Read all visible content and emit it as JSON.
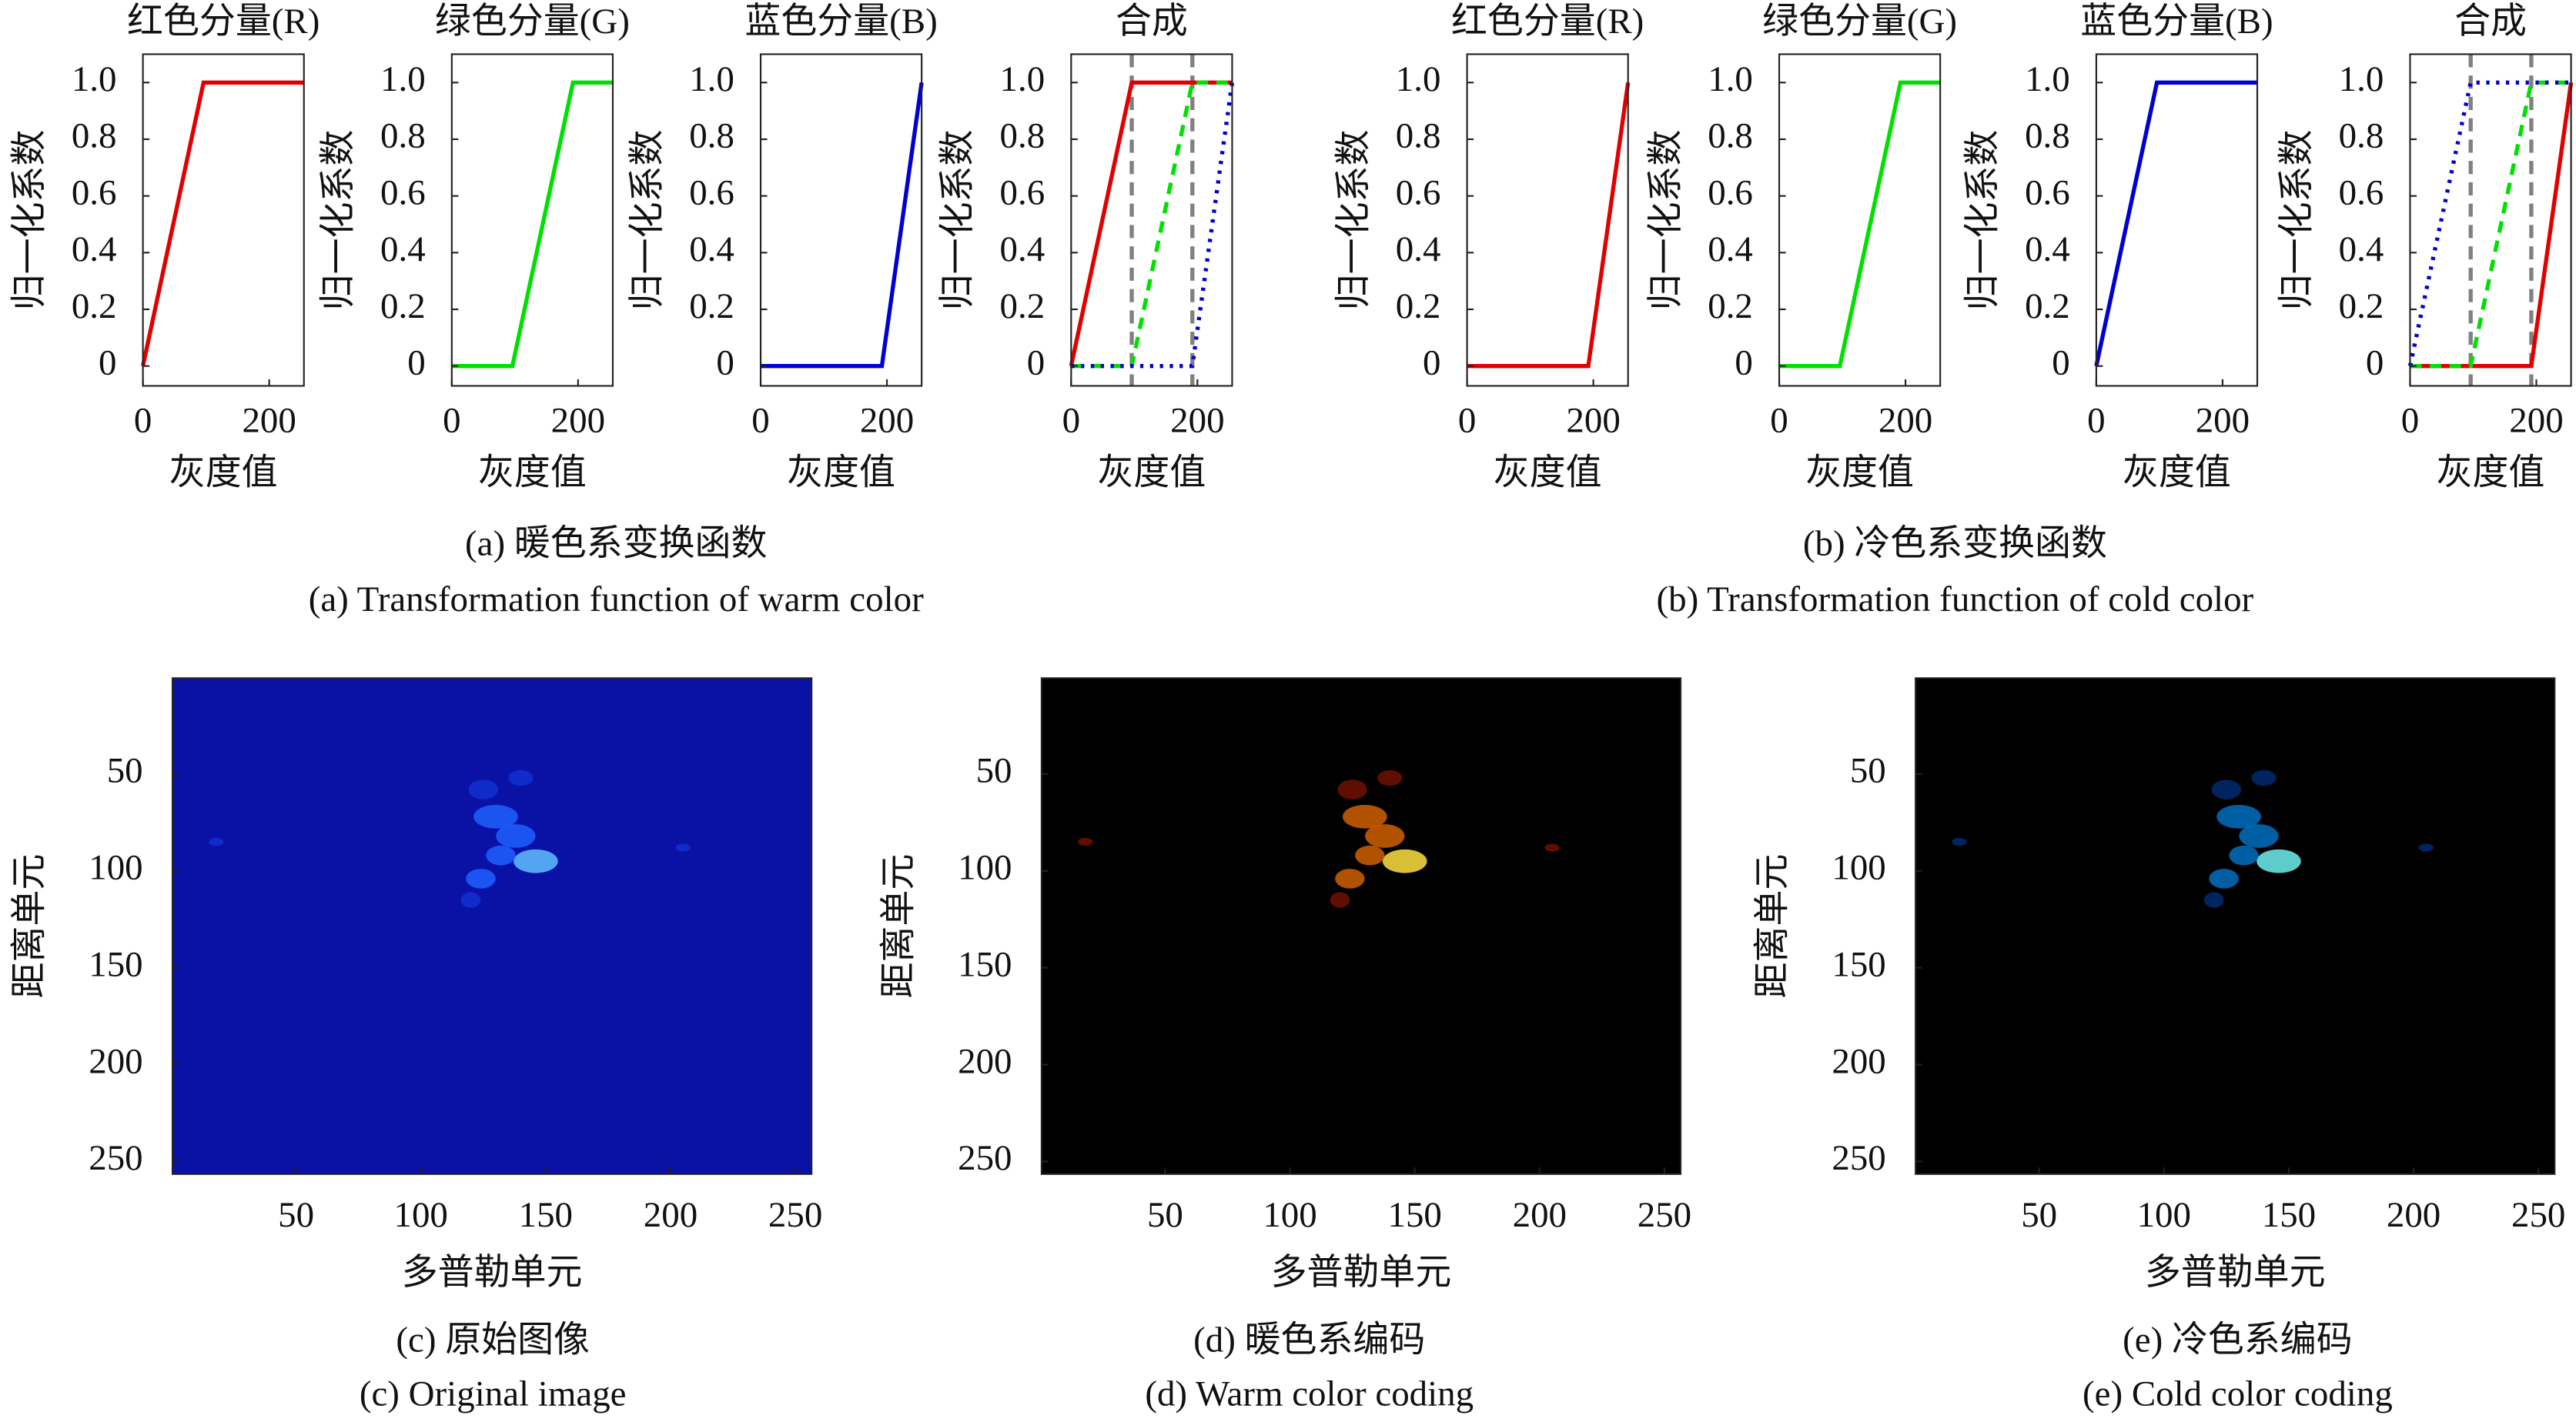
{
  "chart_data": [
    {
      "type": "line",
      "title": "红色分量(R)",
      "xlabel": "灰度值",
      "ylabel": "归一化系数",
      "x": [
        0,
        96,
        192,
        255
      ],
      "xlim": [
        0,
        255
      ],
      "ylim": [
        -0.07,
        1.1
      ],
      "xticks": [
        0,
        200
      ],
      "yticks": [
        0,
        0.2,
        0.4,
        0.6,
        0.8,
        {
          "value": 1,
          "label": "1.0"
        }
      ],
      "series": [
        {
          "color": "#e00000",
          "dash": "solid",
          "values": [
            0,
            1,
            1,
            1
          ]
        }
      ]
    },
    {
      "type": "line",
      "title": "绿色分量(G)",
      "xlabel": "灰度值",
      "ylabel": "归一化系数",
      "x": [
        0,
        96,
        192,
        255
      ],
      "xlim": [
        0,
        255
      ],
      "ylim": [
        -0.07,
        1.1
      ],
      "xticks": [
        0,
        200
      ],
      "yticks": [
        0,
        0.2,
        0.4,
        0.6,
        0.8,
        {
          "value": 1,
          "label": "1.0"
        }
      ],
      "series": [
        {
          "color": "#00e000",
          "dash": "solid",
          "values": [
            0,
            0,
            1,
            1
          ]
        }
      ]
    },
    {
      "type": "line",
      "title": "蓝色分量(B)",
      "xlabel": "灰度值",
      "ylabel": "归一化系数",
      "x": [
        0,
        96,
        192,
        255
      ],
      "xlim": [
        0,
        255
      ],
      "ylim": [
        -0.07,
        1.1
      ],
      "xticks": [
        0,
        200
      ],
      "yticks": [
        0,
        0.2,
        0.4,
        0.6,
        0.8,
        {
          "value": 1,
          "label": "1.0"
        }
      ],
      "series": [
        {
          "color": "#0000d0",
          "dash": "solid",
          "values": [
            0,
            0,
            0,
            1
          ]
        }
      ]
    },
    {
      "type": "line",
      "title": "合成",
      "xlabel": "灰度值",
      "ylabel": "归一化系数",
      "x": [
        0,
        96,
        192,
        255
      ],
      "xlim": [
        0,
        255
      ],
      "ylim": [
        -0.07,
        1.1
      ],
      "xticks": [
        0,
        200
      ],
      "yticks": [
        0,
        0.2,
        0.4,
        0.6,
        0.8,
        {
          "value": 1,
          "label": "1.0"
        }
      ],
      "vlines": [
        96,
        192
      ],
      "vline_color": "#808080",
      "series": [
        {
          "color": "#e00000",
          "dash": "solid",
          "values": [
            0,
            1,
            1,
            1
          ]
        },
        {
          "color": "#00e000",
          "dash": "dashed",
          "values": [
            0,
            0,
            1,
            1
          ]
        },
        {
          "color": "#0000d0",
          "dash": "dotted",
          "values": [
            0,
            0,
            0,
            1
          ]
        }
      ]
    },
    {
      "type": "line",
      "title": "红色分量(R)",
      "xlabel": "灰度值",
      "ylabel": "归一化系数",
      "x": [
        0,
        96,
        192,
        255
      ],
      "xlim": [
        0,
        255
      ],
      "ylim": [
        -0.07,
        1.1
      ],
      "xticks": [
        0,
        200
      ],
      "yticks": [
        0,
        0.2,
        0.4,
        0.6,
        0.8,
        {
          "value": 1,
          "label": "1.0"
        }
      ],
      "series": [
        {
          "color": "#e00000",
          "dash": "solid",
          "values": [
            0,
            0,
            0,
            1
          ]
        }
      ]
    },
    {
      "type": "line",
      "title": "绿色分量(G)",
      "xlabel": "灰度值",
      "ylabel": "归一化系数",
      "x": [
        0,
        96,
        192,
        255
      ],
      "xlim": [
        0,
        255
      ],
      "ylim": [
        -0.07,
        1.1
      ],
      "xticks": [
        0,
        200
      ],
      "yticks": [
        0,
        0.2,
        0.4,
        0.6,
        0.8,
        {
          "value": 1,
          "label": "1.0"
        }
      ],
      "series": [
        {
          "color": "#00e000",
          "dash": "solid",
          "values": [
            0,
            0,
            1,
            1
          ]
        }
      ]
    },
    {
      "type": "line",
      "title": "蓝色分量(B)",
      "xlabel": "灰度值",
      "ylabel": "归一化系数",
      "x": [
        0,
        96,
        192,
        255
      ],
      "xlim": [
        0,
        255
      ],
      "ylim": [
        -0.07,
        1.1
      ],
      "xticks": [
        0,
        200
      ],
      "yticks": [
        0,
        0.2,
        0.4,
        0.6,
        0.8,
        {
          "value": 1,
          "label": "1.0"
        }
      ],
      "series": [
        {
          "color": "#0000d0",
          "dash": "solid",
          "values": [
            0,
            1,
            1,
            1
          ]
        }
      ]
    },
    {
      "type": "line",
      "title": "合成",
      "xlabel": "灰度值",
      "ylabel": "归一化系数",
      "x": [
        0,
        96,
        192,
        255
      ],
      "xlim": [
        0,
        255
      ],
      "ylim": [
        -0.07,
        1.1
      ],
      "xticks": [
        0,
        200
      ],
      "yticks": [
        0,
        0.2,
        0.4,
        0.6,
        0.8,
        {
          "value": 1,
          "label": "1.0"
        }
      ],
      "vlines": [
        96,
        192
      ],
      "vline_color": "#808080",
      "series": [
        {
          "color": "#e00000",
          "dash": "solid",
          "values": [
            0,
            0,
            0,
            1
          ]
        },
        {
          "color": "#00e000",
          "dash": "dashed",
          "values": [
            0,
            0,
            1,
            1
          ]
        },
        {
          "color": "#0000d0",
          "dash": "dotted",
          "values": [
            0,
            1,
            1,
            1
          ]
        }
      ]
    },
    {
      "type": "heatmap",
      "xlabel": "多普勒单元",
      "ylabel": "距离单元",
      "xlim": [
        0.5,
        256.5
      ],
      "ylim": [
        0.5,
        256.5
      ],
      "xticks": [
        50,
        100,
        150,
        200,
        250
      ],
      "yticks": [
        50,
        100,
        150,
        200,
        250
      ],
      "background": "#0a12a6",
      "colors": [
        "#1030d0",
        "#2060ff",
        "#60c0ff"
      ]
    },
    {
      "type": "heatmap",
      "xlabel": "多普勒单元",
      "ylabel": "距离单元",
      "xlim": [
        0.5,
        256.5
      ],
      "ylim": [
        0.5,
        256.5
      ],
      "xticks": [
        50,
        100,
        150,
        200,
        250
      ],
      "yticks": [
        50,
        100,
        150,
        200,
        250
      ],
      "background": "#000000",
      "colors": [
        "#701000",
        "#d06000",
        "#ffe040"
      ]
    },
    {
      "type": "heatmap",
      "xlabel": "多普勒单元",
      "ylabel": "距离单元",
      "xlim": [
        0.5,
        256.5
      ],
      "ylim": [
        0.5,
        256.5
      ],
      "xticks": [
        50,
        100,
        150,
        200,
        250
      ],
      "yticks": [
        50,
        100,
        150,
        200,
        250
      ],
      "background": "#000000",
      "colors": [
        "#002a70",
        "#0070c0",
        "#70f0f0"
      ]
    }
  ],
  "captions": [
    "(a) 暖色系变换函数",
    "(a) Transformation function of warm color",
    "(b) 冷色系变换函数",
    "(b) Transformation function of cold color",
    "(c) 原始图像",
    "(c) Original image",
    "(d) 暖色系编码",
    "(d) Warm color coding",
    "(e) 冷色系编码",
    "(e) Cold color coding"
  ]
}
